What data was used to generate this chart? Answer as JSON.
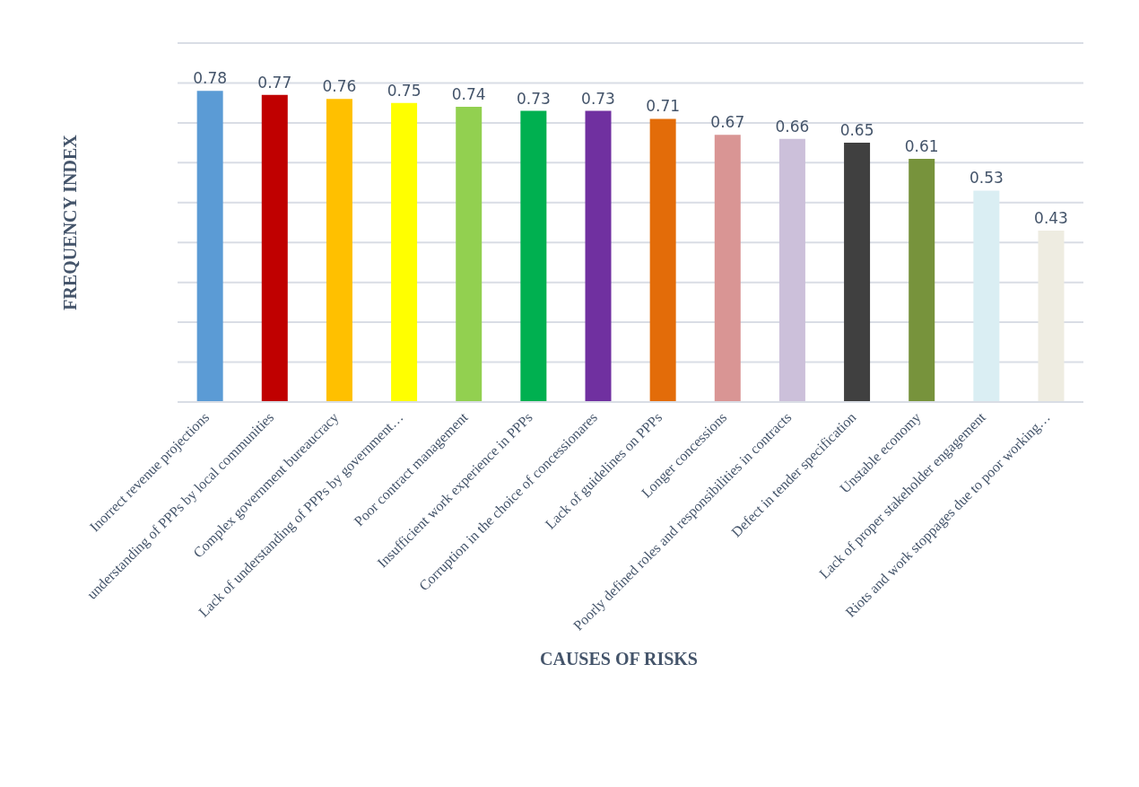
{
  "chart_data": {
    "type": "bar",
    "xlabel": "CAUSES OF RISKS",
    "ylabel": "FREQUENCY INDEX",
    "categories": [
      "Inorrect revenue projections",
      "understanding of PPPs by local communities",
      "Complex government bureaucracy",
      "Lack of understanding of PPPs by government…",
      "Poor contract management",
      "Insufficient work experience in PPPs",
      "Corruption in the choice of concessionares",
      "Lack of guidelines on PPPs",
      "Longer concessions",
      "Poorly defined roles and responsibilities in contracts",
      "Defect in tender specification",
      "Unstable economy",
      "Lack of proper stakeholder engagement",
      "Riots and work stoppages due to poor working…"
    ],
    "values": [
      0.78,
      0.77,
      0.76,
      0.75,
      0.74,
      0.73,
      0.73,
      0.71,
      0.67,
      0.66,
      0.65,
      0.61,
      0.53,
      0.43
    ],
    "colors": [
      "#5b9bd5",
      "#c00000",
      "#ffc000",
      "#ffff00",
      "#92d050",
      "#00b050",
      "#7030a0",
      "#e36c09",
      "#d99594",
      "#ccc0da",
      "#404040",
      "#77933c",
      "#daeef3",
      "#eeece1"
    ],
    "data_labels": true,
    "grid": "y",
    "tick_labels": "x",
    "ylim": [
      0,
      0.9
    ]
  }
}
